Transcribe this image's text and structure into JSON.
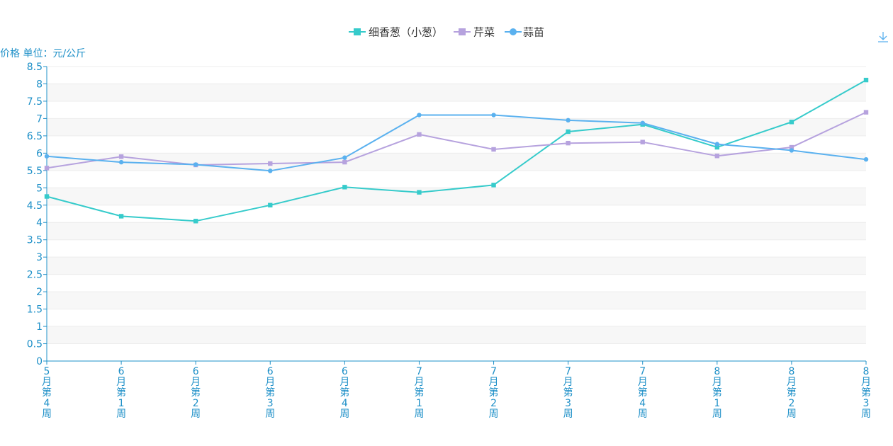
{
  "chart_data": {
    "type": "line",
    "ylabel": "价格 单位：元/公斤",
    "ylim": [
      0,
      8.5
    ],
    "ytick_step": 0.5,
    "categories": [
      "5月第4周",
      "6月第1周",
      "6月第2周",
      "6月第3周",
      "6月第4周",
      "7月第1周",
      "7月第2周",
      "7月第3周",
      "7月第4周",
      "8月第1周",
      "8月第2周",
      "8月第3周"
    ],
    "series": [
      {
        "name": "细香葱（小葱）",
        "color": "#36cbcb",
        "marker": "square",
        "values": [
          4.75,
          4.18,
          4.04,
          4.5,
          5.02,
          4.87,
          5.08,
          6.62,
          6.83,
          6.17,
          6.9,
          8.11
        ]
      },
      {
        "name": "芹菜",
        "color": "#b6a2de",
        "marker": "square",
        "values": [
          5.57,
          5.9,
          5.66,
          5.7,
          5.74,
          6.54,
          6.11,
          6.29,
          6.32,
          5.92,
          6.17,
          7.18
        ]
      },
      {
        "name": "蒜苗",
        "color": "#5ab1ef",
        "marker": "circle",
        "values": [
          5.91,
          5.74,
          5.67,
          5.49,
          5.87,
          7.1,
          7.1,
          6.95,
          6.87,
          6.26,
          6.08,
          5.82
        ]
      }
    ],
    "grid": true,
    "legend_position": "top-center",
    "axis_color": "#1e90c8"
  },
  "toolbar": {
    "download_icon": "download-icon"
  }
}
